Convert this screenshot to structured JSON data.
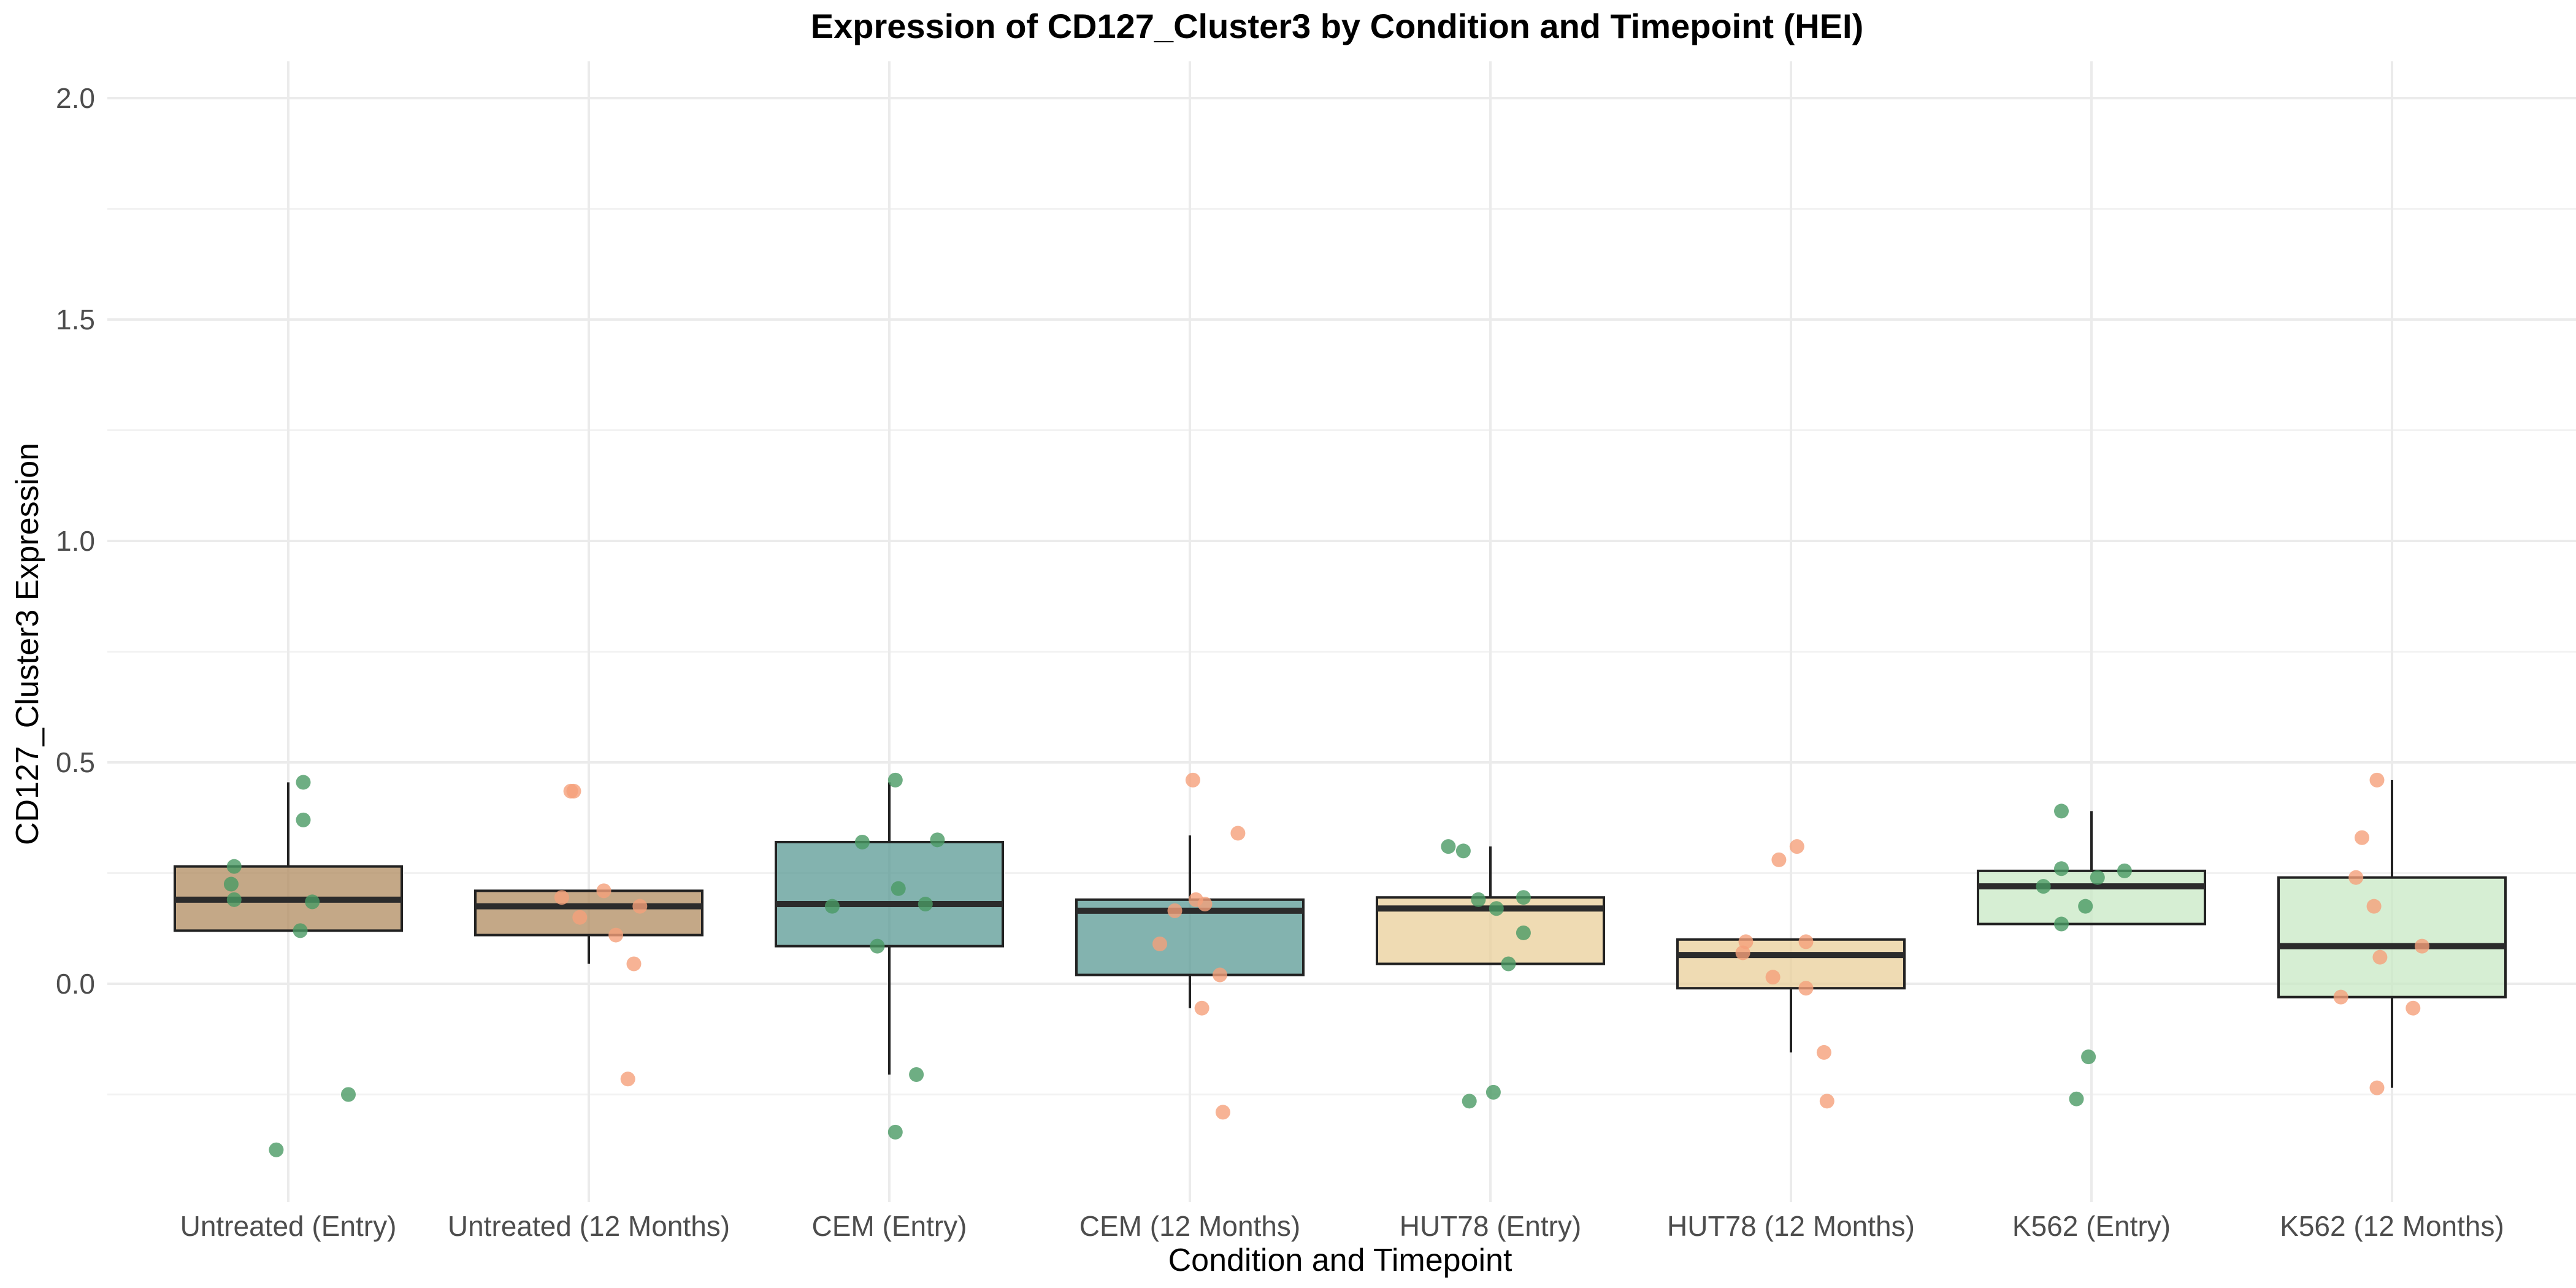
{
  "chart_data": {
    "type": "box",
    "title": "Expression of CD127_Cluster3 by Condition and Timepoint (HEI)",
    "xlabel": "Condition and Timepoint",
    "ylabel": "CD127_Cluster3 Expression",
    "ylim": [
      -0.5,
      2.05
    ],
    "yticks": [
      0.0,
      0.5,
      1.0,
      1.5,
      2.0
    ],
    "ytick_labels": [
      "0.0",
      "0.5",
      "1.0",
      "1.5",
      "2.0"
    ],
    "grid": true,
    "legend": "none",
    "categories": [
      "Untreated (Entry)",
      "Untreated (12 Months)",
      "CEM (Entry)",
      "CEM (12 Months)",
      "HUT78 (Entry)",
      "HUT78 (12 Months)",
      "K562 (Entry)",
      "K562 (12 Months)"
    ],
    "box_colors": [
      "#b08b5f",
      "#b08b5f",
      "#5a9a94",
      "#5a9a94",
      "#eacf99",
      "#eacf99",
      "#c8e8c4",
      "#c8e8c4"
    ],
    "point_colors": {
      "Entry": "#4a9a64",
      "12 Months": "#f5a07a"
    },
    "boxes": [
      {
        "q1": 0.12,
        "median": 0.19,
        "q3": 0.265,
        "whisker_low": 0.12,
        "whisker_high": 0.455
      },
      {
        "q1": 0.11,
        "median": 0.175,
        "q3": 0.21,
        "whisker_low": 0.045,
        "whisker_high": 0.21
      },
      {
        "q1": 0.085,
        "median": 0.18,
        "q3": 0.32,
        "whisker_low": -0.205,
        "whisker_high": 0.455
      },
      {
        "q1": 0.02,
        "median": 0.165,
        "q3": 0.19,
        "whisker_low": -0.055,
        "whisker_high": 0.335
      },
      {
        "q1": 0.045,
        "median": 0.17,
        "q3": 0.195,
        "whisker_low": 0.045,
        "whisker_high": 0.31
      },
      {
        "q1": -0.01,
        "median": 0.065,
        "q3": 0.1,
        "whisker_low": -0.155,
        "whisker_high": 0.1
      },
      {
        "q1": 0.135,
        "median": 0.22,
        "q3": 0.255,
        "whisker_low": 0.135,
        "whisker_high": 0.39
      },
      {
        "q1": -0.03,
        "median": 0.085,
        "q3": 0.24,
        "whisker_low": -0.235,
        "whisker_high": 0.46
      }
    ],
    "points": [
      [
        {
          "dx": 0.05,
          "y": 0.455
        },
        {
          "dx": 0.05,
          "y": 0.37
        },
        {
          "dx": -0.18,
          "y": 0.265
        },
        {
          "dx": -0.19,
          "y": 0.225
        },
        {
          "dx": -0.18,
          "y": 0.19
        },
        {
          "dx": 0.04,
          "y": 0.12
        },
        {
          "dx": 0.08,
          "y": 0.185
        },
        {
          "dx": 0.2,
          "y": -0.25
        },
        {
          "dx": -0.04,
          "y": -0.375
        }
      ],
      [
        {
          "dx": -0.06,
          "y": 0.435
        },
        {
          "dx": -0.05,
          "y": 0.435
        },
        {
          "dx": 0.05,
          "y": 0.21
        },
        {
          "dx": -0.09,
          "y": 0.195
        },
        {
          "dx": 0.17,
          "y": 0.175
        },
        {
          "dx": -0.03,
          "y": 0.15
        },
        {
          "dx": 0.09,
          "y": 0.11
        },
        {
          "dx": 0.15,
          "y": 0.045
        },
        {
          "dx": 0.13,
          "y": -0.215
        }
      ],
      [
        {
          "dx": 0.02,
          "y": 0.46
        },
        {
          "dx": -0.09,
          "y": 0.32
        },
        {
          "dx": 0.16,
          "y": 0.325
        },
        {
          "dx": 0.03,
          "y": 0.215
        },
        {
          "dx": -0.19,
          "y": 0.175
        },
        {
          "dx": 0.12,
          "y": 0.18
        },
        {
          "dx": -0.04,
          "y": 0.085
        },
        {
          "dx": 0.09,
          "y": -0.205
        },
        {
          "dx": 0.02,
          "y": -0.335
        }
      ],
      [
        {
          "dx": 0.01,
          "y": 0.46
        },
        {
          "dx": 0.16,
          "y": 0.34
        },
        {
          "dx": 0.02,
          "y": 0.19
        },
        {
          "dx": 0.05,
          "y": 0.18
        },
        {
          "dx": -0.05,
          "y": 0.165
        },
        {
          "dx": -0.1,
          "y": 0.09
        },
        {
          "dx": 0.1,
          "y": 0.02
        },
        {
          "dx": 0.04,
          "y": -0.055
        },
        {
          "dx": 0.11,
          "y": -0.29
        }
      ],
      [
        {
          "dx": -0.14,
          "y": 0.31
        },
        {
          "dx": -0.09,
          "y": 0.3
        },
        {
          "dx": -0.04,
          "y": 0.19
        },
        {
          "dx": 0.11,
          "y": 0.195
        },
        {
          "dx": 0.02,
          "y": 0.17
        },
        {
          "dx": 0.11,
          "y": 0.115
        },
        {
          "dx": 0.06,
          "y": 0.045
        },
        {
          "dx": -0.07,
          "y": -0.265
        },
        {
          "dx": 0.01,
          "y": -0.245
        }
      ],
      [
        {
          "dx": 0.02,
          "y": 0.31
        },
        {
          "dx": -0.04,
          "y": 0.28
        },
        {
          "dx": -0.15,
          "y": 0.095
        },
        {
          "dx": 0.05,
          "y": 0.095
        },
        {
          "dx": -0.16,
          "y": 0.07
        },
        {
          "dx": -0.06,
          "y": 0.015
        },
        {
          "dx": 0.05,
          "y": -0.01
        },
        {
          "dx": 0.11,
          "y": -0.155
        },
        {
          "dx": 0.12,
          "y": -0.265
        }
      ],
      [
        {
          "dx": -0.1,
          "y": 0.39
        },
        {
          "dx": -0.1,
          "y": 0.26
        },
        {
          "dx": 0.11,
          "y": 0.255
        },
        {
          "dx": 0.02,
          "y": 0.24
        },
        {
          "dx": -0.16,
          "y": 0.22
        },
        {
          "dx": -0.02,
          "y": 0.175
        },
        {
          "dx": -0.1,
          "y": 0.135
        },
        {
          "dx": -0.01,
          "y": -0.165
        },
        {
          "dx": -0.05,
          "y": -0.26
        }
      ],
      [
        {
          "dx": -0.05,
          "y": 0.46
        },
        {
          "dx": -0.1,
          "y": 0.33
        },
        {
          "dx": -0.12,
          "y": 0.24
        },
        {
          "dx": -0.06,
          "y": 0.175
        },
        {
          "dx": 0.1,
          "y": 0.085
        },
        {
          "dx": -0.04,
          "y": 0.06
        },
        {
          "dx": -0.17,
          "y": -0.03
        },
        {
          "dx": 0.07,
          "y": -0.055
        },
        {
          "dx": -0.05,
          "y": -0.235
        }
      ]
    ]
  }
}
